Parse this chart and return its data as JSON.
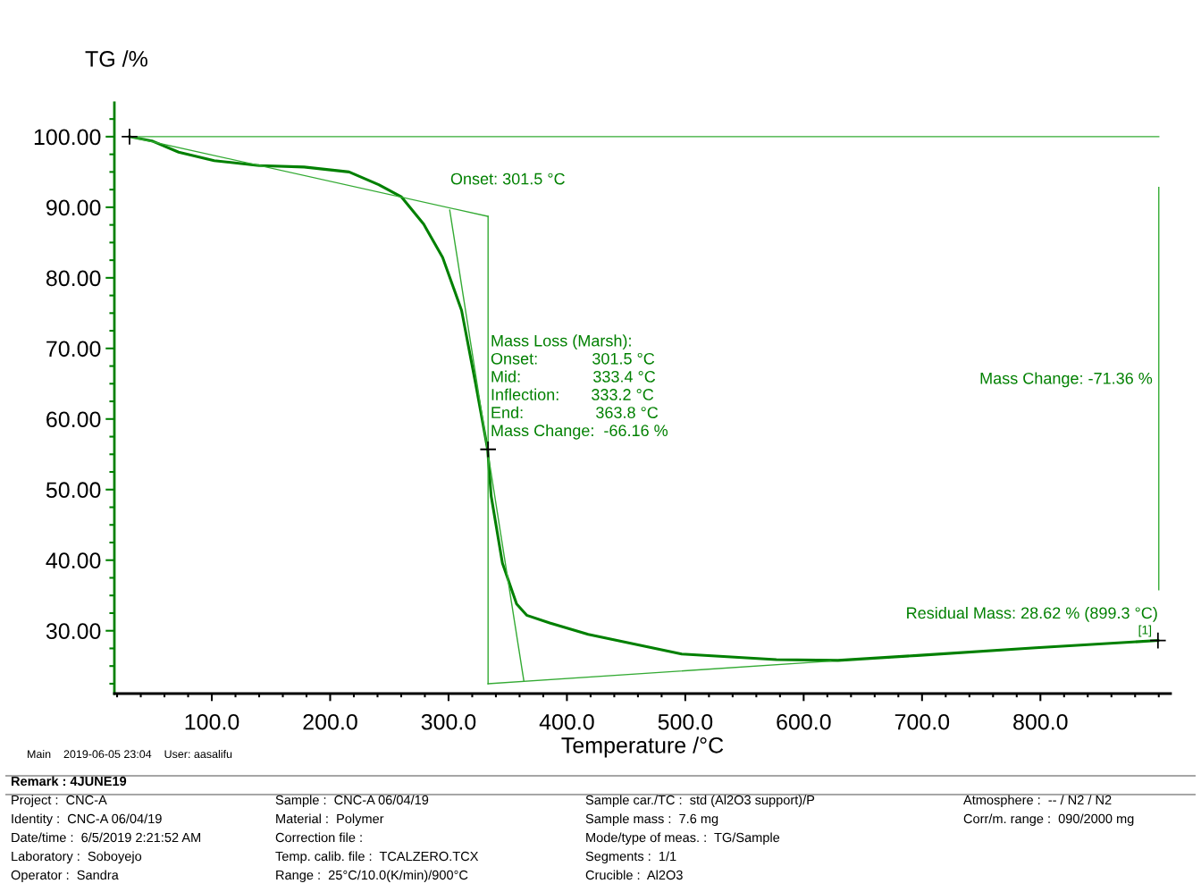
{
  "chart_data": {
    "type": "line",
    "xlabel": "Temperature /°C",
    "ylabel": "TG /%",
    "xlim": [
      17.7,
      910
    ],
    "ylim": [
      21.1,
      104.8
    ],
    "xticks": [
      {
        "value": 100,
        "label": "100.0"
      },
      {
        "value": 200,
        "label": "200.0"
      },
      {
        "value": 300,
        "label": "300.0"
      },
      {
        "value": 400,
        "label": "400.0"
      },
      {
        "value": 500,
        "label": "500.0"
      },
      {
        "value": 600,
        "label": "600.0"
      },
      {
        "value": 700,
        "label": "700.0"
      },
      {
        "value": 800,
        "label": "800.0"
      }
    ],
    "yticks": [
      {
        "value": 30,
        "label": "30.00"
      },
      {
        "value": 40,
        "label": "40.00"
      },
      {
        "value": 50,
        "label": "50.00"
      },
      {
        "value": 60,
        "label": "60.00"
      },
      {
        "value": 70,
        "label": "70.00"
      },
      {
        "value": 80,
        "label": "80.00"
      },
      {
        "value": 90,
        "label": "90.00"
      },
      {
        "value": 100,
        "label": "100.00"
      }
    ],
    "grid": false,
    "legend": false,
    "series": [
      {
        "color": "#008000",
        "x": [
          30.5,
          49.4,
          72,
          102,
          140,
          178,
          216,
          241,
          260,
          279,
          295,
          311,
          323,
          333,
          336,
          345.5,
          357.5,
          366,
          385.5,
          418,
          497,
          577,
          629,
          696,
          796,
          899.3
        ],
        "values": [
          100,
          99.4,
          97.8,
          96.6,
          95.9,
          95.7,
          95.0,
          93.2,
          91.5,
          87.6,
          82.9,
          75.4,
          64.9,
          55.7,
          49.1,
          39.6,
          33.8,
          32.2,
          31.1,
          29.5,
          26.7,
          25.9,
          25.8,
          26.5,
          27.6,
          28.62
        ]
      },
      {
        "color": "#33aa33",
        "x": [
          30.5,
          900
        ],
        "values": [
          100,
          100
        ]
      },
      {
        "color": "#33aa33",
        "x": [
          30.5,
          333.4
        ],
        "values": [
          100,
          88.7
        ]
      },
      {
        "color": "#33aa33",
        "x": [
          301,
          363.6
        ],
        "values": [
          89.6,
          22.9
        ]
      },
      {
        "color": "#33aa33",
        "x": [
          333.4,
          623
        ],
        "values": [
          22.5,
          25.7
        ]
      },
      {
        "color": "#33aa33",
        "x": [
          333.4,
          333.4
        ],
        "values": [
          88.7,
          22.5
        ]
      },
      {
        "color": "#33aa33",
        "x": [
          900,
          900
        ],
        "values": [
          92.8,
          35.8
        ]
      },
      {
        "type": "scatter",
        "marker": "cross",
        "color": "#000000",
        "x": [
          30.5,
          333.4,
          899.3
        ],
        "values": [
          100,
          55.7,
          28.62
        ]
      }
    ],
    "annotations": [
      {
        "text": "Onset: 301.5 °C",
        "x": 301.5,
        "y": 89.6
      },
      {
        "text": "Mass Loss (Marsh):\nOnset:            301.5 °C\nMid:                333.4 °C\nInflection:       333.2 °C\nEnd:                363.8 °C\nMass Change:  -66.16 %",
        "x": 333.4,
        "y": 55.7
      },
      {
        "text": "Mass Change: -71.36 %",
        "x": 900,
        "y": 64.5
      },
      {
        "text": "Residual Mass: 28.62 % (899.3 °C)",
        "x": 899.3,
        "y": 28.62
      },
      {
        "text": "[1]",
        "x": 899.3,
        "y": 28.62
      },
      "Main    2019-06-05 23:04    User: aasalifu",
      "Remark : 4JUNE19",
      "Project :  CNC-A",
      "Identity :  CNC-A 06/04/19",
      "Date/time :  6/5/2019 2:21:52 AM",
      "Laboratory :  Soboyejo",
      "Operator :  Sandra",
      "Sample :  CNC-A 06/04/19",
      "Material :  Polymer",
      "Correction file :",
      "Temp. calib. file :  TCALZERO.TCX",
      "Range :  25°C/10.0(K/min)/900°C",
      "Sample car./TC :  std (Al2O3 support)/P",
      "Sample mass :  7.6 mg",
      "Mode/type of meas. :  TG/Sample",
      "Segments :  1/1",
      "Crucible :  Al2O3",
      "Atmosphere :  -- / N2 / N2",
      "Corr/m. range :  090/2000 mg"
    ]
  }
}
